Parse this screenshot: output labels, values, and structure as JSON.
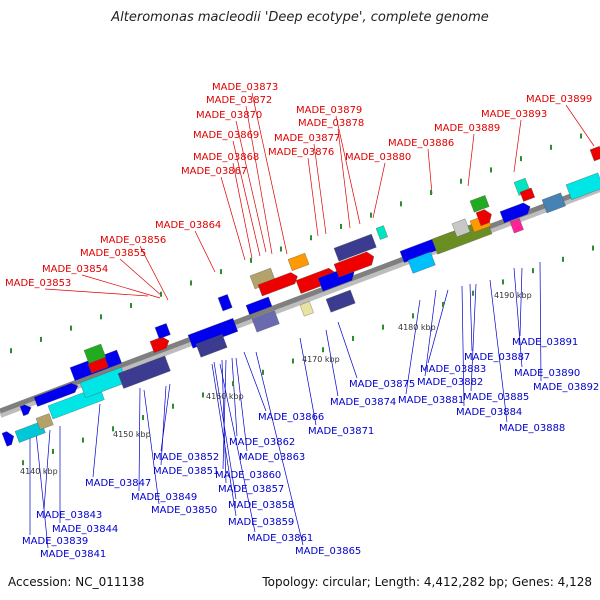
{
  "title": "Alteromonas macleodii 'Deep ecotype', complete genome",
  "footer": {
    "accession": "Accession: NC_011138",
    "info": "Topology: circular; Length: 4,412,282 bp; Genes: 4,128"
  },
  "colors": {
    "upper_label": "#e00000",
    "lower_label": "#0000cc",
    "backbone": "#7f7f7f",
    "tick": "#2e8b2e"
  },
  "scale_labels": [
    "4140 kbp",
    "4150 kbp",
    "4160 kbp",
    "4170 kbp",
    "4180 kbp",
    "4190 kbp"
  ],
  "upper_labels": [
    "MADE_03853",
    "MADE_03854",
    "MADE_03855",
    "MADE_03856",
    "MADE_03864",
    "MADE_03867",
    "MADE_03868",
    "MADE_03869",
    "MADE_03870",
    "MADE_03872",
    "MADE_03873",
    "MADE_03876",
    "MADE_03877",
    "MADE_03878",
    "MADE_03879",
    "MADE_03880",
    "MADE_03886",
    "MADE_03889",
    "MADE_03893",
    "MADE_03899"
  ],
  "lower_labels": [
    "MADE_03891",
    "MADE_03887",
    "MADE_03890",
    "MADE_03883",
    "MADE_03892",
    "MADE_03875",
    "MADE_03882",
    "MADE_03885",
    "MADE_03874",
    "MADE_03881",
    "MADE_03884",
    "MADE_03866",
    "MADE_03871",
    "MADE_03888",
    "MADE_03862",
    "MADE_03863",
    "MADE_03852",
    "MADE_03851",
    "MADE_03860",
    "MADE_03847",
    "MADE_03857",
    "MADE_03849",
    "MADE_03858",
    "MADE_03850",
    "MADE_03843",
    "MADE_03859",
    "MADE_03844",
    "MADE_03861",
    "MADE_03839",
    "MADE_03865",
    "MADE_03841"
  ]
}
